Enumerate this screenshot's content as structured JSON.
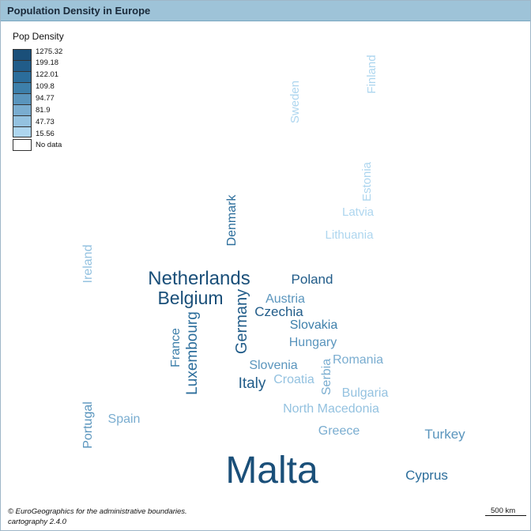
{
  "title": "Population Density in Europe",
  "legend": {
    "title": "Pop Density",
    "classes": [
      {
        "label": "1275.32",
        "color": "#1a4f79"
      },
      {
        "label": "199.18",
        "color": "#215c89"
      },
      {
        "label": "122.01",
        "color": "#2b6d9b"
      },
      {
        "label": "109.8",
        "color": "#3d7faa"
      },
      {
        "label": "94.77",
        "color": "#5a95bd"
      },
      {
        "label": "81.9",
        "color": "#7aadd0"
      },
      {
        "label": "47.73",
        "color": "#94c2e0"
      },
      {
        "label": "15.56",
        "color": "#aed6ef"
      }
    ],
    "nodata_label": "No data"
  },
  "countries": [
    {
      "name": "Malta",
      "color": "#1a4f79"
    },
    {
      "name": "Netherlands",
      "color": "#1a4f79"
    },
    {
      "name": "Belgium",
      "color": "#1a4f79"
    },
    {
      "name": "Germany",
      "color": "#215c89"
    },
    {
      "name": "Luxembourg",
      "color": "#2b6d9b"
    },
    {
      "name": "Denmark",
      "color": "#2b6d9b"
    },
    {
      "name": "Poland",
      "color": "#215c89"
    },
    {
      "name": "Czechia",
      "color": "#215c89"
    },
    {
      "name": "Italy",
      "color": "#215c89"
    },
    {
      "name": "Cyprus",
      "color": "#2b6d9b"
    },
    {
      "name": "Slovakia",
      "color": "#3d7faa"
    },
    {
      "name": "Hungary",
      "color": "#5a95bd"
    },
    {
      "name": "Austria",
      "color": "#5a95bd"
    },
    {
      "name": "France",
      "color": "#3d7faa"
    },
    {
      "name": "Slovenia",
      "color": "#5a95bd"
    },
    {
      "name": "Turkey",
      "color": "#5a95bd"
    },
    {
      "name": "Portugal",
      "color": "#5a95bd"
    },
    {
      "name": "Romania",
      "color": "#7aadd0"
    },
    {
      "name": "Serbia",
      "color": "#7aadd0"
    },
    {
      "name": "Greece",
      "color": "#7aadd0"
    },
    {
      "name": "Croatia",
      "color": "#94c2e0"
    },
    {
      "name": "Bulgaria",
      "color": "#94c2e0"
    },
    {
      "name": "North Macedonia",
      "color": "#94c2e0"
    },
    {
      "name": "Spain",
      "color": "#7aadd0"
    },
    {
      "name": "Ireland",
      "color": "#94c2e0"
    },
    {
      "name": "Lithuania",
      "color": "#aed6ef"
    },
    {
      "name": "Latvia",
      "color": "#aed6ef"
    },
    {
      "name": "Estonia",
      "color": "#aed6ef"
    },
    {
      "name": "Sweden",
      "color": "#aed6ef"
    },
    {
      "name": "Finland",
      "color": "#aed6ef"
    }
  ],
  "credits": [
    "© EuroGeographics for the administrative boundaries.",
    "cartography 2.4.0"
  ],
  "scalebar": {
    "label": "500 km"
  }
}
